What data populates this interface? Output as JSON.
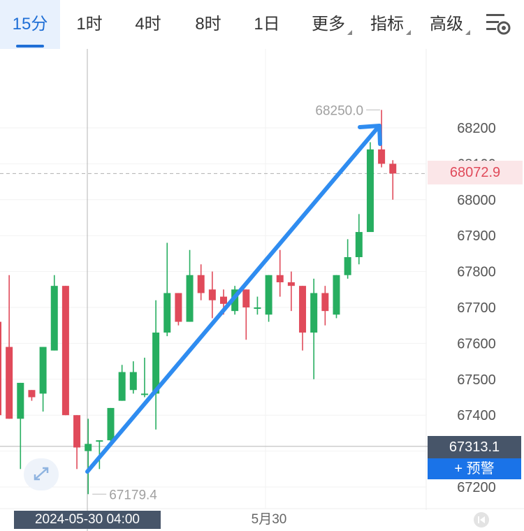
{
  "tabs": [
    {
      "label": "15分",
      "active": true
    },
    {
      "label": "1时"
    },
    {
      "label": "4时"
    },
    {
      "label": "8时"
    },
    {
      "label": "1日"
    },
    {
      "label": "更多",
      "dropdown": true
    },
    {
      "label": "指标",
      "dropdown": true
    },
    {
      "label": "高级",
      "dropdown": true
    }
  ],
  "settings_icon": "layout-settings-icon",
  "price_axis": [
    "68200",
    "68100",
    "68000",
    "67900",
    "67800",
    "67700",
    "67600",
    "67500",
    "67400",
    "67300",
    "67200"
  ],
  "current_price": "68072.9",
  "crosshair_price": "67313.1",
  "alert_button": "+ 预警",
  "high_marker": "68250.0",
  "low_marker": "67179.4",
  "crosshair_time": "2024-05-30 04:00",
  "date_label": "5月30",
  "colors": {
    "up": "#27ae60",
    "down": "#e04a5a",
    "accent": "#1a73e8",
    "arrow": "#2f8cf0"
  },
  "chart_data": {
    "type": "candlestick",
    "interval": "15分",
    "ylim": [
      67150,
      68300
    ],
    "candles": [
      {
        "o": 67660,
        "h": 67660,
        "l": 67400,
        "c": 67400
      },
      {
        "o": 67590,
        "h": 67790,
        "l": 67390,
        "c": 67390
      },
      {
        "o": 67390,
        "h": 67490,
        "l": 67250,
        "c": 67490
      },
      {
        "o": 67470,
        "h": 67470,
        "l": 67440,
        "c": 67450
      },
      {
        "o": 67460,
        "h": 67590,
        "l": 67410,
        "c": 67590
      },
      {
        "o": 67580,
        "h": 67790,
        "l": 67580,
        "c": 67760
      },
      {
        "o": 67760,
        "h": 67760,
        "l": 67400,
        "c": 67400
      },
      {
        "o": 67400,
        "h": 67400,
        "l": 67250,
        "c": 67310
      },
      {
        "o": 67300,
        "h": 67390,
        "l": 67180,
        "c": 67320
      },
      {
        "o": 67330,
        "h": 67330,
        "l": 67250,
        "c": 67330
      },
      {
        "o": 67330,
        "h": 67420,
        "l": 67320,
        "c": 67420
      },
      {
        "o": 67440,
        "h": 67540,
        "l": 67440,
        "c": 67520
      },
      {
        "o": 67470,
        "h": 67550,
        "l": 67460,
        "c": 67520
      },
      {
        "o": 67460,
        "h": 67560,
        "l": 67450,
        "c": 67460
      },
      {
        "o": 67460,
        "h": 67720,
        "l": 67360,
        "c": 67630
      },
      {
        "o": 67630,
        "h": 67880,
        "l": 67620,
        "c": 67740
      },
      {
        "o": 67740,
        "h": 67740,
        "l": 67650,
        "c": 67660
      },
      {
        "o": 67660,
        "h": 67860,
        "l": 67660,
        "c": 67790
      },
      {
        "o": 67790,
        "h": 67820,
        "l": 67720,
        "c": 67740
      },
      {
        "o": 67750,
        "h": 67800,
        "l": 67670,
        "c": 67720
      },
      {
        "o": 67730,
        "h": 67750,
        "l": 67680,
        "c": 67710
      },
      {
        "o": 67690,
        "h": 67760,
        "l": 67680,
        "c": 67750
      },
      {
        "o": 67750,
        "h": 67750,
        "l": 67610,
        "c": 67700
      },
      {
        "o": 67700,
        "h": 67730,
        "l": 67680,
        "c": 67700
      },
      {
        "o": 67680,
        "h": 67790,
        "l": 67660,
        "c": 67790
      },
      {
        "o": 67790,
        "h": 67860,
        "l": 67730,
        "c": 67770
      },
      {
        "o": 67770,
        "h": 67800,
        "l": 67690,
        "c": 67760
      },
      {
        "o": 67760,
        "h": 67760,
        "l": 67580,
        "c": 67630
      },
      {
        "o": 67630,
        "h": 67780,
        "l": 67500,
        "c": 67740
      },
      {
        "o": 67740,
        "h": 67760,
        "l": 67650,
        "c": 67690
      },
      {
        "o": 67680,
        "h": 67790,
        "l": 67670,
        "c": 67790
      },
      {
        "o": 67790,
        "h": 67890,
        "l": 67780,
        "c": 67840
      },
      {
        "o": 67840,
        "h": 67960,
        "l": 67820,
        "c": 67910
      },
      {
        "o": 67910,
        "h": 68160,
        "l": 67910,
        "c": 68140
      },
      {
        "o": 68140,
        "h": 68250,
        "l": 68090,
        "c": 68100
      },
      {
        "o": 68100,
        "h": 68110,
        "l": 68000,
        "c": 68072.9
      }
    ]
  }
}
